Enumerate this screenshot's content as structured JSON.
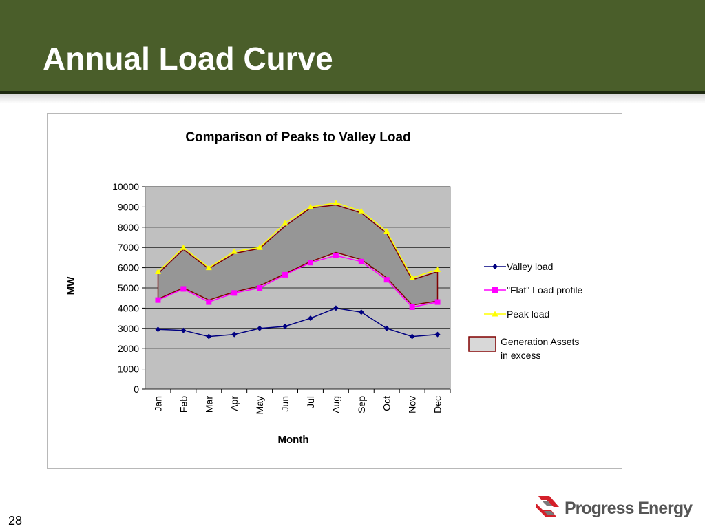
{
  "slide": {
    "title": "Annual Load Curve",
    "page_number": "28",
    "logo_text": "Progress Energy"
  },
  "colors": {
    "header_bg": "#4a5e2a",
    "plot_bg": "#c0c0c0",
    "valley": "#000080",
    "flat": "#ff00ff",
    "peak": "#ffff00",
    "band_fill": "#969696",
    "band_edge": "#800000"
  },
  "chart_data": {
    "type": "line",
    "title": "Comparison of Peaks to Valley Load",
    "xlabel": "Month",
    "ylabel": "MW",
    "ylim": [
      0,
      10000
    ],
    "yticks": [
      0,
      1000,
      2000,
      3000,
      4000,
      5000,
      6000,
      7000,
      8000,
      9000,
      10000
    ],
    "categories": [
      "Jan",
      "Feb",
      "Mar",
      "Apr",
      "May",
      "Jun",
      "Jul",
      "Aug",
      "Sep",
      "Oct",
      "Nov",
      "Dec"
    ],
    "grid": "horizontal",
    "legend_position": "right",
    "series": [
      {
        "name": "Valley load",
        "marker": "diamond",
        "color": "#000080",
        "values": [
          2950,
          2900,
          2600,
          2700,
          3000,
          3100,
          3500,
          4000,
          3800,
          3000,
          2600,
          2700
        ]
      },
      {
        "name": "\"Flat\" Load profile",
        "marker": "square",
        "color": "#ff00ff",
        "values": [
          4400,
          4950,
          4300,
          4750,
          5000,
          5650,
          6250,
          6600,
          6300,
          5400,
          4050,
          4300
        ]
      },
      {
        "name": "Peak load",
        "marker": "triangle",
        "color": "#ffff00",
        "values": [
          5800,
          7000,
          6000,
          6800,
          7000,
          8200,
          9000,
          9200,
          8800,
          7800,
          5500,
          5900
        ]
      }
    ],
    "band": {
      "name": "Generation Assets in excess",
      "label_lines": [
        "Generation Assets",
        "in excess"
      ],
      "lower": [
        4450,
        5000,
        4400,
        4800,
        5100,
        5700,
        6300,
        6750,
        6400,
        5500,
        4150,
        4350
      ],
      "upper": [
        5700,
        6900,
        5950,
        6700,
        6950,
        8050,
        8950,
        9100,
        8700,
        7700,
        5400,
        5800
      ]
    }
  }
}
